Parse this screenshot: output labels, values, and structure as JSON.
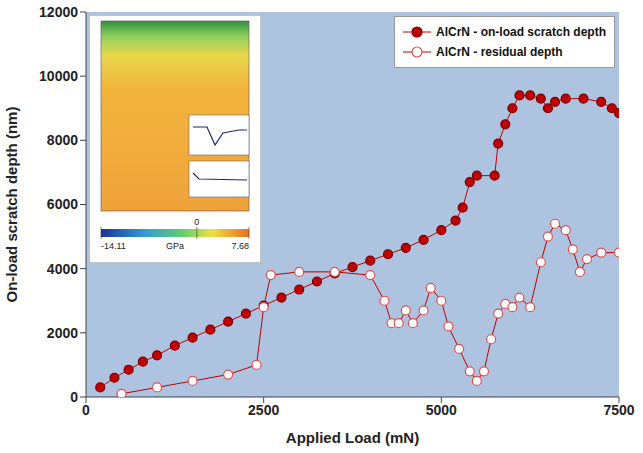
{
  "chart_data": {
    "type": "scatter",
    "x_label": "Applied Load (mN)",
    "y_label": "On-load scratch depth (nm)",
    "xlim": [
      0,
      7500
    ],
    "xticks": [
      0,
      2500,
      5000,
      7500
    ],
    "ylim": [
      0,
      12000
    ],
    "yticks": [
      0,
      2000,
      4000,
      6000,
      8000,
      10000,
      12000
    ],
    "grid": false,
    "legend": "upper right",
    "series": [
      {
        "name": "AlCrN - on-load scratch depth",
        "color": "#c00000",
        "marker": "circle",
        "line_style": "solid",
        "x": [
          200,
          400,
          600,
          800,
          1000,
          1250,
          1500,
          1750,
          2000,
          2250,
          2500,
          2750,
          3000,
          3250,
          3500,
          3750,
          4000,
          4250,
          4500,
          4750,
          5000,
          5200,
          5300,
          5400,
          5500,
          5750,
          5800,
          5900,
          6000,
          6100,
          6250,
          6400,
          6500,
          6600,
          6750,
          7000,
          7250,
          7400,
          7500
        ],
        "values": [
          300,
          600,
          850,
          1100,
          1300,
          1600,
          1850,
          2100,
          2350,
          2600,
          2850,
          3100,
          3350,
          3600,
          3850,
          4050,
          4250,
          4450,
          4650,
          4900,
          5200,
          5500,
          5900,
          6700,
          6900,
          6900,
          7900,
          8500,
          9000,
          9400,
          9400,
          9300,
          9000,
          9200,
          9300,
          9300,
          9200,
          9000,
          8850
        ]
      },
      {
        "name": "AlCrN - residual depth",
        "color": "#c00000",
        "marker": "circle_open",
        "line_style": "solid",
        "x": [
          500,
          1000,
          1500,
          2000,
          2400,
          2500,
          2600,
          3000,
          3500,
          4000,
          4200,
          4300,
          4400,
          4500,
          4600,
          4750,
          4850,
          5000,
          5100,
          5250,
          5400,
          5500,
          5600,
          5700,
          5800,
          5900,
          6000,
          6100,
          6250,
          6400,
          6500,
          6600,
          6750,
          6850,
          6950,
          7050,
          7250,
          7500
        ],
        "values": [
          100,
          300,
          500,
          700,
          1000,
          2800,
          3800,
          3900,
          3900,
          3800,
          3000,
          2300,
          2300,
          2700,
          2300,
          2700,
          3400,
          3000,
          2200,
          1500,
          800,
          500,
          800,
          1800,
          2600,
          2900,
          2800,
          3100,
          2800,
          4200,
          5000,
          5400,
          5200,
          4600,
          3900,
          4300,
          4500,
          4500
        ]
      }
    ],
    "inset": {
      "colorbar_range": [
        -14.11,
        7.68
      ],
      "colorbar_ticks": [
        -14.11,
        0,
        7.68
      ],
      "colorbar_label": "GPa"
    }
  }
}
